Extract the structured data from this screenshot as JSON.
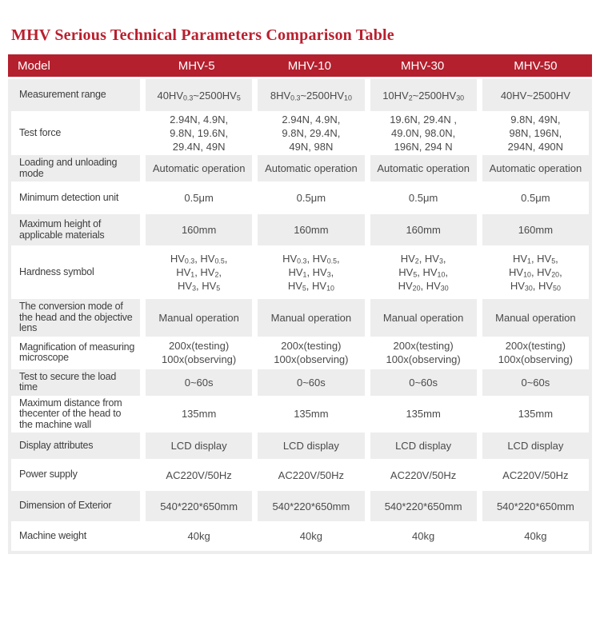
{
  "title": "MHV Serious Technical Parameters Comparison Table",
  "colors": {
    "accent_red": "#b4202e",
    "title_red": "#b91f2e",
    "row_gray": "#ededed",
    "header_text": "#ffffff",
    "body_text": "#4a4a4a"
  },
  "table": {
    "header": {
      "model_label": "Model",
      "columns": [
        "MHV-5",
        "MHV-10",
        "MHV-30",
        "MHV-50"
      ]
    },
    "rows": [
      {
        "label": "Measurement range",
        "values": [
          [
            "40HV_{0.3}~2500HV_{5}"
          ],
          [
            "8HV_{0.3}~2500HV_{10}"
          ],
          [
            "10HV_{2}~2500HV_{30}"
          ],
          [
            "40HV~2500HV"
          ]
        ]
      },
      {
        "label": "Test force",
        "values": [
          [
            "2.94N、 4.9N、",
            "9.8N、 19.6N、",
            "29.4N、 49N"
          ],
          [
            "2.94N、 4.9N、",
            "9.8N、 29.4N、",
            "49N、 98N"
          ],
          [
            "19.6N、 29.4N 、",
            "49.0N、 98.0N、",
            "196N、 294 N"
          ],
          [
            "9.8N、 49N、",
            "98N、 196N、",
            "294N、 490N"
          ]
        ]
      },
      {
        "label": "Loading and unloading mode",
        "values": [
          [
            "Automatic operation"
          ],
          [
            "Automatic operation"
          ],
          [
            "Automatic operation"
          ],
          [
            "Automatic operation"
          ]
        ]
      },
      {
        "label": "Minimum detection unit",
        "values": [
          [
            "0.5μm"
          ],
          [
            "0.5μm"
          ],
          [
            "0.5μm"
          ],
          [
            "0.5μm"
          ]
        ]
      },
      {
        "label": "Maximum height of applicable materials",
        "values": [
          [
            "160mm"
          ],
          [
            "160mm"
          ],
          [
            "160mm"
          ],
          [
            "160mm"
          ]
        ]
      },
      {
        "label": "Hardness symbol",
        "values": [
          [
            "HV_{0.3}、 HV_{0.5}、",
            "HV_{1}、 HV_{2}、",
            "HV_{3}、 HV_{5}"
          ],
          [
            "HV_{0.3}、 HV_{0.5}、",
            "HV_{1}、 HV_{3}、",
            "HV_{5}、 HV_{10}"
          ],
          [
            "HV_{2}、 HV_{3}、",
            "HV_{5}、 HV_{10}、",
            "HV_{20}、 HV_{30}"
          ],
          [
            "HV_{1}、 HV_{5}、",
            "HV_{10}、 HV_{20}、",
            "HV_{30}、 HV_{50}"
          ]
        ]
      },
      {
        "label": "The conversion mode of the head and the objective lens",
        "values": [
          [
            "Manual operation"
          ],
          [
            "Manual operation"
          ],
          [
            "Manual operation"
          ],
          [
            "Manual operation"
          ]
        ]
      },
      {
        "label": "Magnification of measuring microscope",
        "values": [
          [
            "200x(testing)",
            "100x(observing)"
          ],
          [
            "200x(testing)",
            "100x(observing)"
          ],
          [
            "200x(testing)",
            "100x(observing)"
          ],
          [
            "200x(testing)",
            "100x(observing)"
          ]
        ]
      },
      {
        "label": "Test to secure the load time",
        "values": [
          [
            "0~60s"
          ],
          [
            "0~60s"
          ],
          [
            "0~60s"
          ],
          [
            "0~60s"
          ]
        ]
      },
      {
        "label": "Maximum distance from thecenter of the head to the machine wall",
        "values": [
          [
            "135mm"
          ],
          [
            "135mm"
          ],
          [
            "135mm"
          ],
          [
            "135mm"
          ]
        ]
      },
      {
        "label": "Display attributes",
        "values": [
          [
            "LCD display"
          ],
          [
            "LCD display"
          ],
          [
            "LCD display"
          ],
          [
            "LCD display"
          ]
        ]
      },
      {
        "label": "Power supply",
        "values": [
          [
            "AC220V/50Hz"
          ],
          [
            "AC220V/50Hz"
          ],
          [
            "AC220V/50Hz"
          ],
          [
            "AC220V/50Hz"
          ]
        ]
      },
      {
        "label": "Dimension of Exterior",
        "values": [
          [
            "540*220*650mm"
          ],
          [
            "540*220*650mm"
          ],
          [
            "540*220*650mm"
          ],
          [
            "540*220*650mm"
          ]
        ]
      },
      {
        "label": "Machine weight",
        "values": [
          [
            "40kg"
          ],
          [
            "40kg"
          ],
          [
            "40kg"
          ],
          [
            "40kg"
          ]
        ]
      }
    ]
  }
}
